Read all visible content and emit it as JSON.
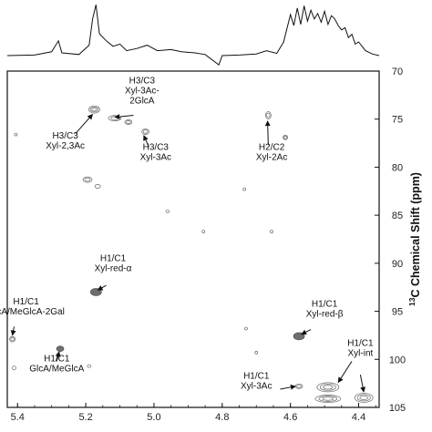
{
  "chart_data": {
    "type": "2D NMR HSQC spectrum",
    "x_axis": {
      "unit": "ppm (1H)",
      "ticks": [
        5.4,
        5.2,
        5.0,
        4.8,
        4.6,
        4.4
      ],
      "tick_labels": [
        "5.4",
        "5.2",
        "5.0",
        "4.8",
        "4.6",
        "4.4"
      ],
      "range": [
        5.43,
        4.34
      ],
      "reversed": true
    },
    "y_axis": {
      "label_prefix": "13",
      "label_main": "C Chemical Shift (ppm)",
      "ticks": [
        70,
        75,
        80,
        85,
        90,
        95,
        100,
        105
      ],
      "tick_labels": [
        "70",
        "75",
        "80",
        "85",
        "90",
        "95",
        "100",
        "105"
      ],
      "range": [
        70,
        105
      ],
      "position": "right",
      "reversed": true
    },
    "projection": {
      "position": "top",
      "points": [
        [
          5.43,
          0.05
        ],
        [
          5.35,
          0.06
        ],
        [
          5.3,
          0.12
        ],
        [
          5.28,
          0.32
        ],
        [
          5.27,
          0.1
        ],
        [
          5.22,
          0.07
        ],
        [
          5.19,
          0.24
        ],
        [
          5.18,
          0.72
        ],
        [
          5.17,
          0.98
        ],
        [
          5.16,
          0.45
        ],
        [
          5.14,
          0.32
        ],
        [
          5.12,
          0.22
        ],
        [
          5.1,
          0.26
        ],
        [
          5.08,
          0.14
        ],
        [
          5.05,
          0.18
        ],
        [
          5.02,
          0.24
        ],
        [
          4.99,
          0.14
        ],
        [
          4.95,
          0.16
        ],
        [
          4.92,
          0.12
        ],
        [
          4.88,
          0.1
        ],
        [
          4.85,
          0.07
        ],
        [
          4.81,
          -0.12
        ],
        [
          4.8,
          0.05
        ],
        [
          4.75,
          0.06
        ],
        [
          4.7,
          0.08
        ],
        [
          4.67,
          0.14
        ],
        [
          4.64,
          0.09
        ],
        [
          4.62,
          0.3
        ],
        [
          4.6,
          0.8
        ],
        [
          4.59,
          0.6
        ],
        [
          4.58,
          0.92
        ],
        [
          4.57,
          0.62
        ],
        [
          4.56,
          0.96
        ],
        [
          4.55,
          0.68
        ],
        [
          4.54,
          0.88
        ],
        [
          4.53,
          0.72
        ],
        [
          4.52,
          0.82
        ],
        [
          4.51,
          0.66
        ],
        [
          4.5,
          0.86
        ],
        [
          4.49,
          0.62
        ],
        [
          4.48,
          0.78
        ],
        [
          4.47,
          0.72
        ],
        [
          4.46,
          0.6
        ],
        [
          4.45,
          0.52
        ],
        [
          4.44,
          0.56
        ],
        [
          4.43,
          0.38
        ],
        [
          4.42,
          0.44
        ],
        [
          4.41,
          0.26
        ],
        [
          4.4,
          0.3
        ],
        [
          4.38,
          0.14
        ],
        [
          4.36,
          0.08
        ],
        [
          4.34,
          0.05
        ]
      ]
    },
    "peaks": [
      {
        "x": 5.175,
        "y": 74.0,
        "rx": 6,
        "ry": 4,
        "dark": false
      },
      {
        "x": 5.115,
        "y": 74.9,
        "rx": 7,
        "ry": 3,
        "dark": false
      },
      {
        "x": 5.075,
        "y": 75.3,
        "rx": 4,
        "ry": 2.5,
        "dark": false
      },
      {
        "x": 5.025,
        "y": 76.3,
        "rx": 4,
        "ry": 3,
        "dark": false
      },
      {
        "x": 4.665,
        "y": 74.6,
        "rx": 3,
        "ry": 4,
        "dark": false
      },
      {
        "x": 4.615,
        "y": 76.9,
        "rx": 2.5,
        "ry": 2.5,
        "dark": false
      },
      {
        "x": 5.195,
        "y": 81.3,
        "rx": 5,
        "ry": 3,
        "dark": false
      },
      {
        "x": 5.165,
        "y": 82.0,
        "rx": 3,
        "ry": 2,
        "dark": false
      },
      {
        "x": 4.96,
        "y": 84.6,
        "rx": 2,
        "ry": 1.5,
        "dark": false
      },
      {
        "x": 4.855,
        "y": 86.7,
        "rx": 1.5,
        "ry": 1.5,
        "dark": false
      },
      {
        "x": 4.655,
        "y": 86.7,
        "rx": 1.5,
        "ry": 1.5,
        "dark": false
      },
      {
        "x": 4.735,
        "y": 82.3,
        "rx": 1.5,
        "ry": 1.5,
        "dark": false
      },
      {
        "x": 5.405,
        "y": 76.6,
        "rx": 1.5,
        "ry": 1.5,
        "dark": false
      },
      {
        "x": 5.17,
        "y": 93.0,
        "rx": 6,
        "ry": 4,
        "dark": true
      },
      {
        "x": 4.575,
        "y": 97.6,
        "rx": 6,
        "ry": 4,
        "dark": true
      },
      {
        "x": 4.73,
        "y": 96.8,
        "rx": 1.5,
        "ry": 1.5,
        "dark": false
      },
      {
        "x": 5.415,
        "y": 97.9,
        "rx": 3,
        "ry": 3,
        "dark": false
      },
      {
        "x": 5.275,
        "y": 98.9,
        "rx": 4,
        "ry": 3,
        "dark": true
      },
      {
        "x": 5.41,
        "y": 100.9,
        "rx": 2,
        "ry": 2,
        "dark": false
      },
      {
        "x": 5.19,
        "y": 100.7,
        "rx": 2,
        "ry": 1.5,
        "dark": false
      },
      {
        "x": 4.575,
        "y": 102.8,
        "rx": 4,
        "ry": 2.5,
        "dark": false
      },
      {
        "x": 4.49,
        "y": 102.9,
        "rx": 12,
        "ry": 5,
        "dark": false
      },
      {
        "x": 4.49,
        "y": 104.1,
        "rx": 14,
        "ry": 4,
        "dark": false
      },
      {
        "x": 4.385,
        "y": 104.0,
        "rx": 10,
        "ry": 5,
        "dark": false
      },
      {
        "x": 4.7,
        "y": 99.3,
        "rx": 1.5,
        "ry": 1.5,
        "dark": false
      }
    ],
    "annotations": [
      {
        "lines": [
          "H3/C3",
          "Xyl-3Ac-",
          "2GlcA"
        ],
        "tx": 5.035,
        "ty": 71.3,
        "arrow_from": [
          5.06,
          74.6
        ],
        "arrow_to": [
          5.115,
          74.8
        ]
      },
      {
        "lines": [
          "H3/C3",
          "Xyl-2,3Ac"
        ],
        "tx": 5.26,
        "ty": 77.0,
        "arrow_from": [
          5.23,
          76.5
        ],
        "arrow_to": [
          5.18,
          74.5
        ]
      },
      {
        "lines": [
          "H3/C3",
          "Xyl-3Ac"
        ],
        "tx": 4.995,
        "ty": 78.2,
        "arrow_from": [
          5.015,
          77.9
        ],
        "arrow_to": [
          5.03,
          76.7
        ]
      },
      {
        "lines": [
          "H2/C2",
          "Xyl-2Ac"
        ],
        "tx": 4.655,
        "ty": 78.2,
        "arrow_from": [
          4.665,
          77.7
        ],
        "arrow_to": [
          4.667,
          75.2
        ]
      },
      {
        "lines": [
          "H1/C1",
          "Xyl-red-α"
        ],
        "tx": 5.12,
        "ty": 89.8,
        "arrow_from": [
          5.14,
          92.3
        ],
        "arrow_to": [
          5.165,
          92.8
        ]
      },
      {
        "lines": [
          "H1/C1",
          "GlcA/MeGlcA-2Gal"
        ],
        "tx": 5.375,
        "ty": 94.3,
        "arrow_from": [
          5.41,
          96.6
        ],
        "arrow_to": [
          5.415,
          97.5
        ]
      },
      {
        "lines": [
          "H1/C1",
          "Xyl-red-β"
        ],
        "tx": 4.5,
        "ty": 94.5,
        "arrow_from": [
          4.54,
          96.9
        ],
        "arrow_to": [
          4.568,
          97.4
        ]
      },
      {
        "lines": [
          "H1/C1",
          "GlcA/MeGlcA"
        ],
        "tx": 5.285,
        "ty": 100.2,
        "arrow_from": [
          5.285,
          100.2
        ],
        "arrow_to": [
          5.278,
          99.2
        ]
      },
      {
        "lines": [
          "H1/C1",
          "Xyl-int"
        ],
        "tx": 4.395,
        "ty": 98.6,
        "arrow_from": [
          4.42,
          100.2
        ],
        "arrow_to": [
          4.46,
          102.4
        ],
        "arrow2_from": [
          4.395,
          101.6
        ],
        "arrow2_to": [
          4.385,
          103.4
        ]
      },
      {
        "lines": [
          "H1/C1",
          "Xyl-3Ac"
        ],
        "tx": 4.7,
        "ty": 102.0,
        "arrow_from": [
          4.63,
          103.1
        ],
        "arrow_to": [
          4.585,
          102.8
        ]
      }
    ]
  }
}
